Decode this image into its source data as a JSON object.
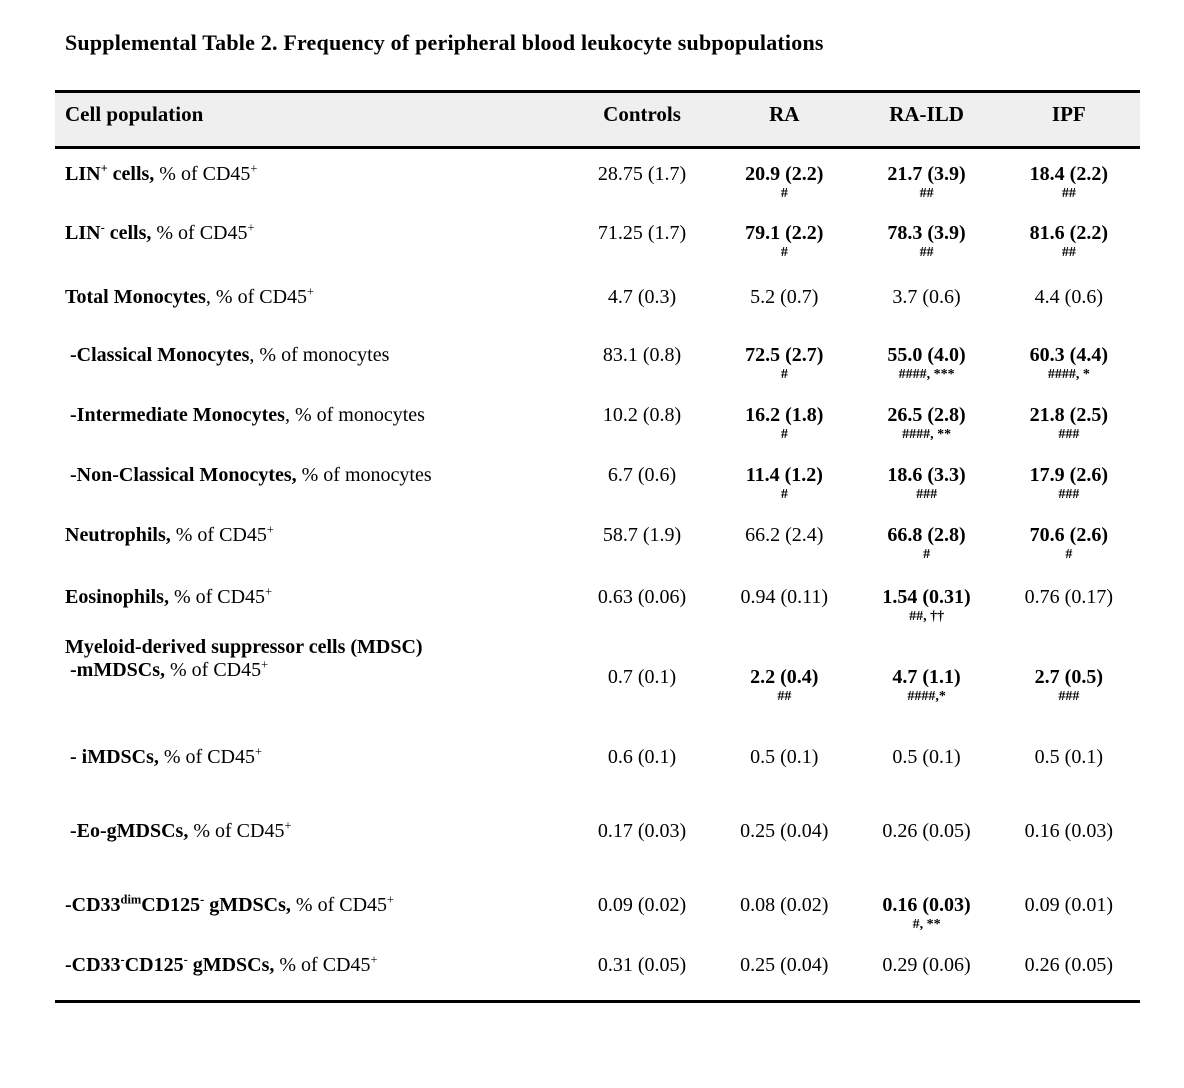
{
  "title": "Supplemental Table 2. Frequency of peripheral blood leukocyte subpopulations",
  "table": {
    "columns": [
      "Cell population",
      "Controls",
      "RA",
      "RA-ILD",
      "IPF"
    ],
    "rows": [
      {
        "label_html": "<b>LIN<sup>+</sup> cells,</b> % of CD45<sup>+</sup>",
        "cells": [
          {
            "value": "28.75 (1.7)",
            "bold": false,
            "note": ""
          },
          {
            "value": "20.9 (2.2)",
            "bold": true,
            "note": "#"
          },
          {
            "value": "21.7 (3.9)",
            "bold": true,
            "note": "##"
          },
          {
            "value": "18.4 (2.2)",
            "bold": true,
            "note": "##"
          }
        ]
      },
      {
        "label_html": "<b>LIN<sup>-</sup> cells,</b> % of CD45<sup>+</sup>",
        "cells": [
          {
            "value": "71.25 (1.7)",
            "bold": false,
            "note": ""
          },
          {
            "value": "79.1 (2.2)",
            "bold": true,
            "note": "#"
          },
          {
            "value": "78.3 (3.9)",
            "bold": true,
            "note": "##"
          },
          {
            "value": "81.6 (2.2)",
            "bold": true,
            "note": "##"
          }
        ]
      },
      {
        "label_html": "<b>Total Monocytes</b>, % of CD45<sup>+</sup>",
        "cells": [
          {
            "value": "4.7 (0.3)",
            "bold": false,
            "note": ""
          },
          {
            "value": "5.2 (0.7)",
            "bold": false,
            "note": ""
          },
          {
            "value": "3.7 (0.6)",
            "bold": false,
            "note": ""
          },
          {
            "value": "4.4 (0.6)",
            "bold": false,
            "note": ""
          }
        ]
      },
      {
        "label_html": "&nbsp;<b>-Classical Monocytes</b>, % of monocytes",
        "cells": [
          {
            "value": "83.1 (0.8)",
            "bold": false,
            "note": ""
          },
          {
            "value": "72.5 (2.7)",
            "bold": true,
            "note": "#"
          },
          {
            "value": "55.0 (4.0)",
            "bold": true,
            "note": "####, ***"
          },
          {
            "value": "60.3 (4.4)",
            "bold": true,
            "note": "####, *"
          }
        ]
      },
      {
        "label_html": "&nbsp;<b>-Intermediate Monocytes</b>, % of monocytes",
        "cells": [
          {
            "value": "10.2 (0.8)",
            "bold": false,
            "note": ""
          },
          {
            "value": "16.2 (1.8)",
            "bold": true,
            "note": "#"
          },
          {
            "value": "26.5 (2.8)",
            "bold": true,
            "note": "####, **"
          },
          {
            "value": "21.8 (2.5)",
            "bold": true,
            "note": "###"
          }
        ]
      },
      {
        "label_html": "&nbsp;<b>-Non-Classical Monocytes,</b> % of monocytes",
        "cells": [
          {
            "value": "6.7 (0.6)",
            "bold": false,
            "note": ""
          },
          {
            "value": "11.4 (1.2)",
            "bold": true,
            "note": "#"
          },
          {
            "value": "18.6 (3.3)",
            "bold": true,
            "note": "###"
          },
          {
            "value": "17.9 (2.6)",
            "bold": true,
            "note": "###"
          }
        ]
      },
      {
        "label_html": "<b>Neutrophils,</b> % of CD45<sup>+</sup>",
        "cells": [
          {
            "value": "58.7 (1.9)",
            "bold": false,
            "note": ""
          },
          {
            "value": "66.2 (2.4)",
            "bold": false,
            "note": ""
          },
          {
            "value": "66.8 (2.8)",
            "bold": true,
            "note": "#"
          },
          {
            "value": "70.6 (2.6)",
            "bold": true,
            "note": "#"
          }
        ]
      },
      {
        "label_html": "<b>Eosinophils,</b> % of CD45<sup>+</sup>",
        "cells": [
          {
            "value": "0.63 (0.06)",
            "bold": false,
            "note": ""
          },
          {
            "value": "0.94 (0.11)",
            "bold": false,
            "note": ""
          },
          {
            "value": "1.54 (0.31)",
            "bold": true,
            "note": "##, ††"
          },
          {
            "value": "0.76 (0.17)",
            "bold": false,
            "note": ""
          }
        ]
      },
      {
        "label_html": "<b>Myeloid-derived suppressor cells (MDSC)</b><br>&nbsp;<b>-mMDSCs,</b> % of CD45<sup>+</sup>",
        "cells": [
          {
            "value": "0.7 (0.1)",
            "bold": false,
            "note": ""
          },
          {
            "value": "2.2 (0.4)",
            "bold": true,
            "note": "##"
          },
          {
            "value": "4.7 (1.1)",
            "bold": true,
            "note": "####,*"
          },
          {
            "value": "2.7 (0.5)",
            "bold": true,
            "note": "###"
          }
        ]
      },
      {
        "label_html": "&nbsp;<b>- iMDSCs,</b> % of CD45<sup>+</sup>",
        "cells": [
          {
            "value": "0.6 (0.1)",
            "bold": false,
            "note": ""
          },
          {
            "value": "0.5 (0.1)",
            "bold": false,
            "note": ""
          },
          {
            "value": "0.5 (0.1)",
            "bold": false,
            "note": ""
          },
          {
            "value": "0.5 (0.1)",
            "bold": false,
            "note": ""
          }
        ]
      },
      {
        "label_html": "&nbsp;<b>-Eo-gMDSCs,</b> % of CD45<sup>+</sup>",
        "cells": [
          {
            "value": "0.17 (0.03)",
            "bold": false,
            "note": ""
          },
          {
            "value": "0.25 (0.04)",
            "bold": false,
            "note": ""
          },
          {
            "value": "0.26 (0.05)",
            "bold": false,
            "note": ""
          },
          {
            "value": "0.16 (0.03)",
            "bold": false,
            "note": ""
          }
        ]
      },
      {
        "label_html": "<b>-CD33<sup>dim</sup>CD125<sup>-</sup> gMDSCs,</b> % of CD45<sup>+</sup>",
        "cells": [
          {
            "value": "0.09 (0.02)",
            "bold": false,
            "note": ""
          },
          {
            "value": "0.08 (0.02)",
            "bold": false,
            "note": ""
          },
          {
            "value": "0.16 (0.03)",
            "bold": true,
            "note": "#, **"
          },
          {
            "value": "0.09 (0.01)",
            "bold": false,
            "note": ""
          }
        ]
      },
      {
        "label_html": "<b>-CD33<sup>-</sup>CD125<sup>-</sup> gMDSCs,</b> % of CD45<sup>+</sup>",
        "cells": [
          {
            "value": "0.31 (0.05)",
            "bold": false,
            "note": ""
          },
          {
            "value": "0.25 (0.04)",
            "bold": false,
            "note": ""
          },
          {
            "value": "0.29 (0.06)",
            "bold": false,
            "note": ""
          },
          {
            "value": "0.26 (0.05)",
            "bold": false,
            "note": ""
          }
        ]
      }
    ]
  }
}
